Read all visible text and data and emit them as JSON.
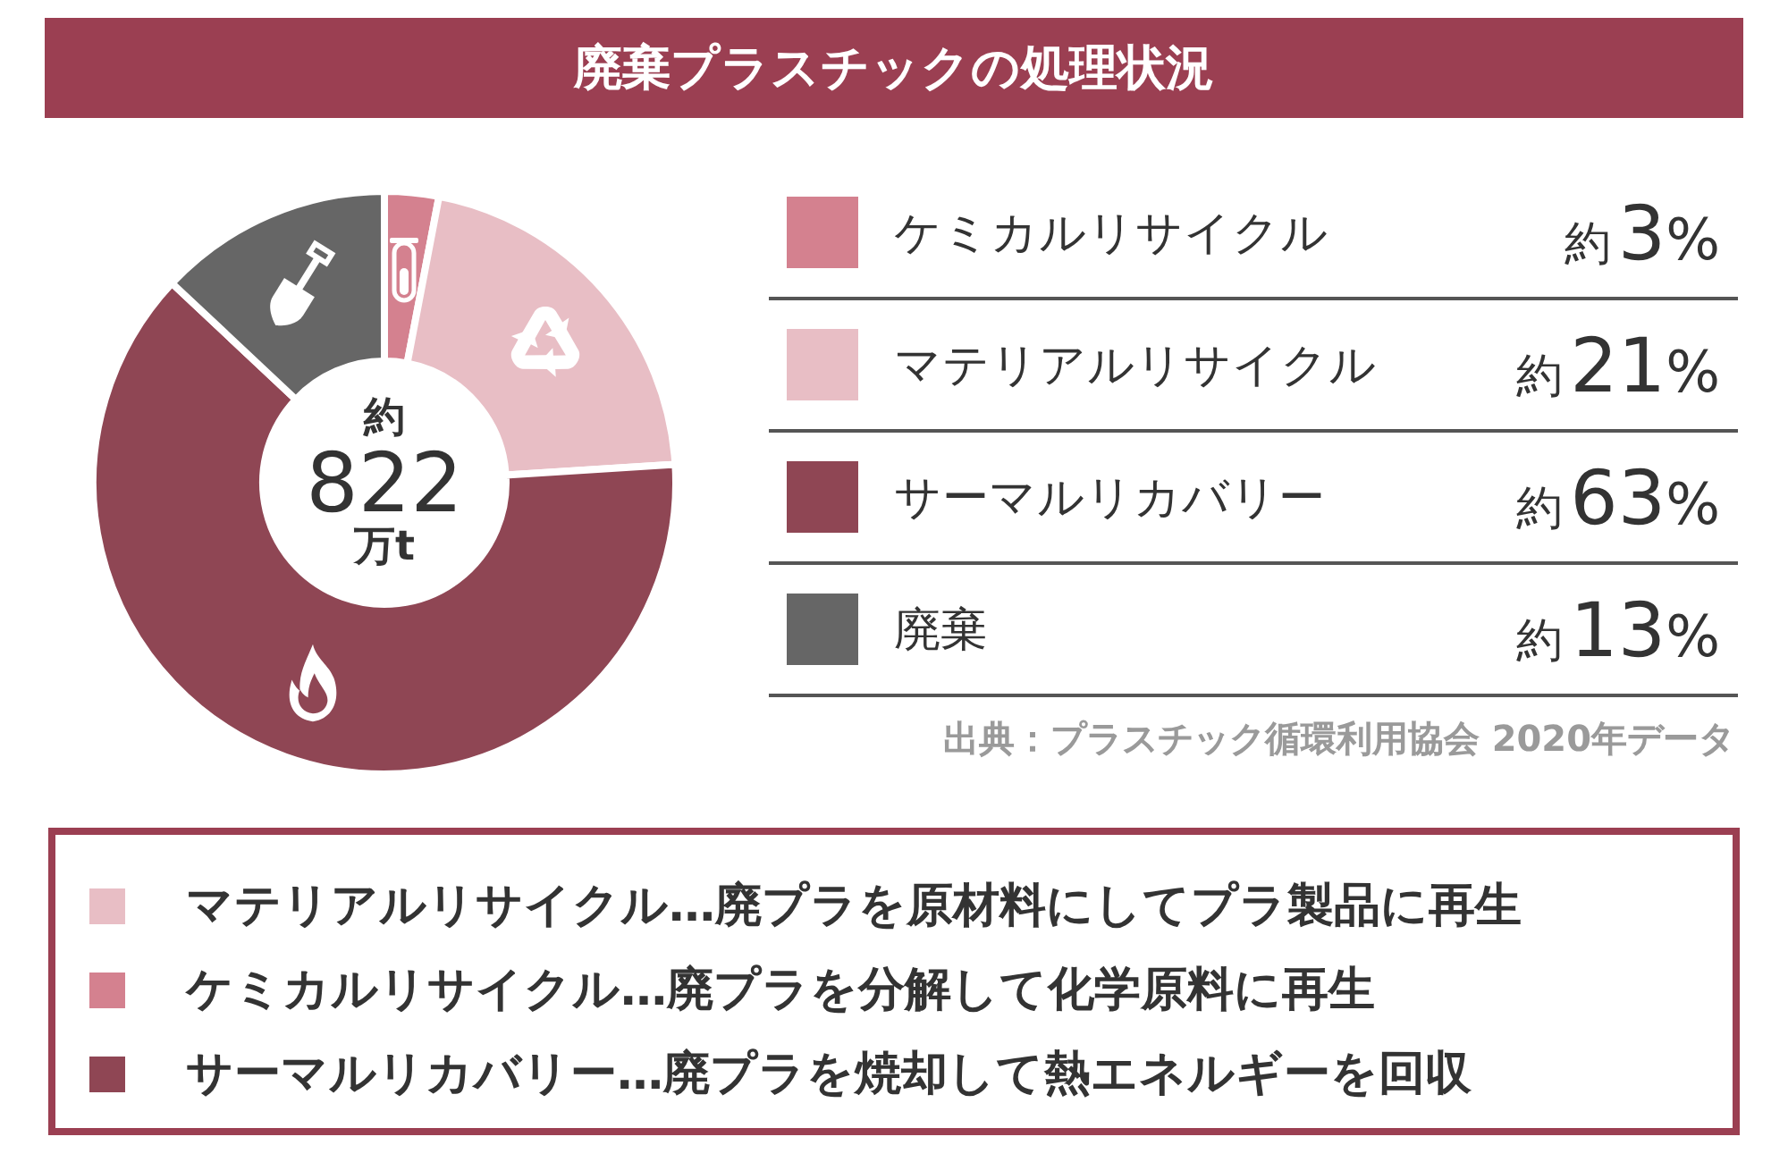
{
  "chart_data": {
    "type": "donut",
    "title": "廃棄プラスチックの処理状況",
    "categories": [
      "ケミカルリサイクル",
      "マテリアルリサイクル",
      "サーマルリカバリー",
      "廃棄"
    ],
    "values": [
      3,
      21,
      63,
      13
    ],
    "colors": [
      "#d4818f",
      "#e8bec5",
      "#8f4654",
      "#666666"
    ],
    "value_labels": [
      "約3%",
      "約21%",
      "約63%",
      "約13%"
    ],
    "legend": "right",
    "annotations": [
      "約\n822\n万t",
      "出典：プラスチック循環利用協会 2020年データ",
      "マテリアルリサイクル…廃プラを原材料にしてプラ製品に再生",
      "ケミカルリサイクル…廃プラを分解して化学原料に再生",
      "サーマルリカバリー…廃プラを焼却して熱エネルギーを回収"
    ]
  }
}
